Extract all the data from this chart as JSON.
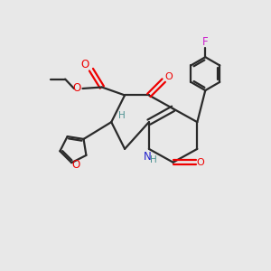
{
  "background_color": "#e8e8e8",
  "bond_color": "#2a2a2a",
  "oxygen_color": "#ee0000",
  "nitrogen_color": "#2222cc",
  "fluorine_color": "#cc22cc",
  "hydrogen_color": "#4a9090",
  "figsize": [
    3.0,
    3.0
  ],
  "dpi": 100,
  "xlim": [
    0,
    10
  ],
  "ylim": [
    0,
    10
  ],
  "lw": 1.6
}
